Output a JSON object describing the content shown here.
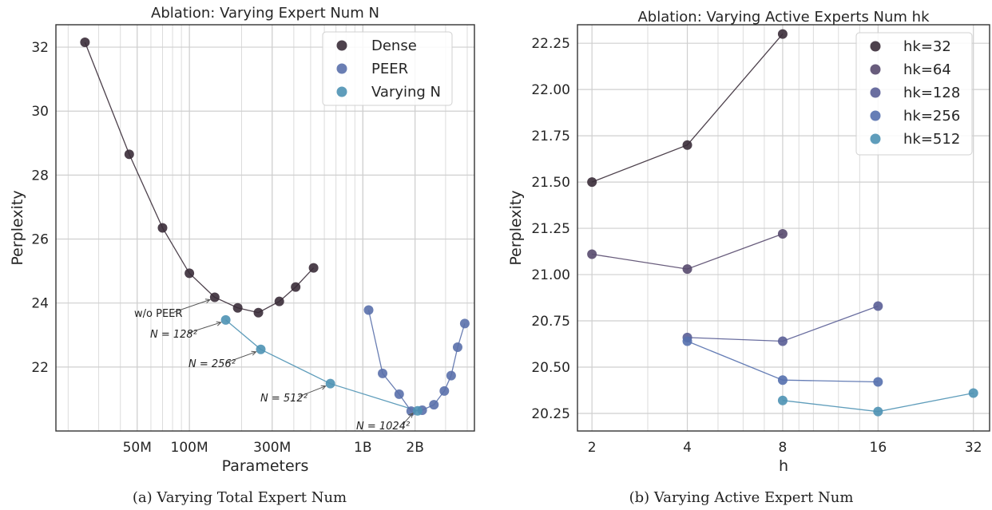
{
  "chart_data": [
    {
      "type": "scatter",
      "title": "Ablation: Varying Expert Num N",
      "xlabel": "Parameters",
      "ylabel": "Perplexity",
      "xscale": "log",
      "xlim": [
        17000000,
        4400000000
      ],
      "ylim": [
        20.0,
        32.7
      ],
      "xticks": [
        {
          "value": 50000000,
          "label": "50M"
        },
        {
          "value": 100000000,
          "label": "100M"
        },
        {
          "value": 300000000,
          "label": "300M"
        },
        {
          "value": 1000000000,
          "label": "1B"
        },
        {
          "value": 2000000000,
          "label": "2B"
        }
      ],
      "yticks": [
        22,
        24,
        26,
        28,
        30,
        32
      ],
      "grid": true,
      "legend_position": "top-right",
      "caption": "(a) Varying Total Expert Num",
      "series": [
        {
          "name": "Dense",
          "color": "#3a2c38",
          "connected": true,
          "points": [
            [
              25000000,
              32.15
            ],
            [
              45000000,
              28.65
            ],
            [
              70000000,
              26.35
            ],
            [
              100000000,
              24.93
            ],
            [
              140000000,
              24.18
            ],
            [
              190000000,
              23.85
            ],
            [
              250000000,
              23.7
            ],
            [
              330000000,
              24.05
            ],
            [
              410000000,
              24.5
            ],
            [
              520000000,
              25.1
            ]
          ]
        },
        {
          "name": "PEER",
          "color": "#5a70ab",
          "connected": true,
          "points": [
            [
              1080000000,
              23.78
            ],
            [
              1300000000,
              21.8
            ],
            [
              1620000000,
              21.15
            ],
            [
              1900000000,
              20.62
            ],
            [
              2200000000,
              20.65
            ],
            [
              2570000000,
              20.82
            ],
            [
              2950000000,
              21.25
            ],
            [
              3230000000,
              21.73
            ],
            [
              3520000000,
              22.62
            ],
            [
              3870000000,
              23.36
            ]
          ]
        },
        {
          "name": "Varying N",
          "color": "#4e92b4",
          "connected": true,
          "points": [
            [
              162000000,
              23.47
            ],
            [
              258000000,
              22.55
            ],
            [
              650000000,
              21.48
            ],
            [
              2070000000,
              20.63
            ]
          ]
        }
      ],
      "annotations": [
        {
          "text": "w/o PEER",
          "x": 140000000,
          "y": 24.18
        },
        {
          "text": "N = 128²",
          "x": 162000000,
          "y": 23.47
        },
        {
          "text": "N = 256²",
          "x": 258000000,
          "y": 22.55
        },
        {
          "text": "N = 512²",
          "x": 650000000,
          "y": 21.48
        },
        {
          "text": "N = 1024²",
          "x": 2070000000,
          "y": 20.63
        }
      ]
    },
    {
      "type": "scatter",
      "title": "Ablation: Varying Active Experts Num hk",
      "xlabel": "h",
      "ylabel": "Perplexity",
      "xscale": "log2",
      "xlim": [
        1.8,
        36
      ],
      "ylim": [
        20.155,
        22.35
      ],
      "xticks": [
        {
          "value": 2,
          "label": "2"
        },
        {
          "value": 4,
          "label": "4"
        },
        {
          "value": 8,
          "label": "8"
        },
        {
          "value": 16,
          "label": "16"
        },
        {
          "value": 32,
          "label": "32"
        }
      ],
      "yticks": [
        {
          "value": 20.25,
          "label": "20.25"
        },
        {
          "value": 20.5,
          "label": "20.50"
        },
        {
          "value": 20.75,
          "label": "20.75"
        },
        {
          "value": 21.0,
          "label": "21.00"
        },
        {
          "value": 21.25,
          "label": "21.25"
        },
        {
          "value": 21.5,
          "label": "21.50"
        },
        {
          "value": 21.75,
          "label": "21.75"
        },
        {
          "value": 22.0,
          "label": "22.00"
        },
        {
          "value": 22.25,
          "label": "22.25"
        }
      ],
      "grid": true,
      "legend_position": "top-right",
      "caption": "(b) Varying Active Expert Num",
      "series": [
        {
          "name": "hk=32",
          "color": "#3a2c38",
          "connected": true,
          "points": [
            [
              2,
              21.5
            ],
            [
              4,
              21.7
            ],
            [
              8,
              22.3
            ]
          ]
        },
        {
          "name": "hk=64",
          "color": "#584a6e",
          "connected": true,
          "points": [
            [
              2,
              21.11
            ],
            [
              4,
              21.03
            ],
            [
              8,
              21.22
            ]
          ]
        },
        {
          "name": "hk=128",
          "color": "#5a5e96",
          "connected": true,
          "points": [
            [
              4,
              20.66
            ],
            [
              8,
              20.64
            ],
            [
              16,
              20.83
            ]
          ]
        },
        {
          "name": "hk=256",
          "color": "#5570ae",
          "connected": true,
          "points": [
            [
              4,
              20.64
            ],
            [
              8,
              20.43
            ],
            [
              16,
              20.42
            ]
          ]
        },
        {
          "name": "hk=512",
          "color": "#4e92b4",
          "connected": true,
          "points": [
            [
              8,
              20.32
            ],
            [
              16,
              20.26
            ],
            [
              32,
              20.36
            ]
          ]
        }
      ]
    }
  ]
}
